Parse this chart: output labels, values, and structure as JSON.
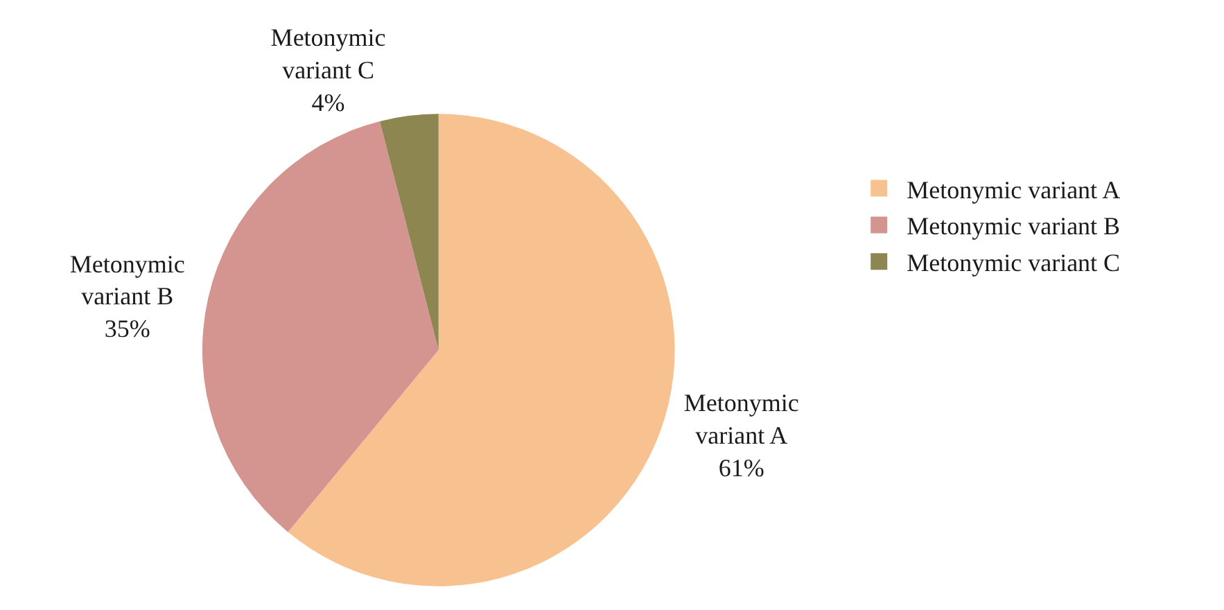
{
  "chart_data": {
    "type": "pie",
    "categories": [
      "Metonymic variant A",
      "Metonymic variant B",
      "Metonymic variant C"
    ],
    "values": [
      61,
      35,
      4
    ],
    "value_labels": [
      "61%",
      "35%",
      "4%"
    ],
    "colors": [
      "#f8c190",
      "#d49590",
      "#8d8651"
    ],
    "legend": "right"
  }
}
